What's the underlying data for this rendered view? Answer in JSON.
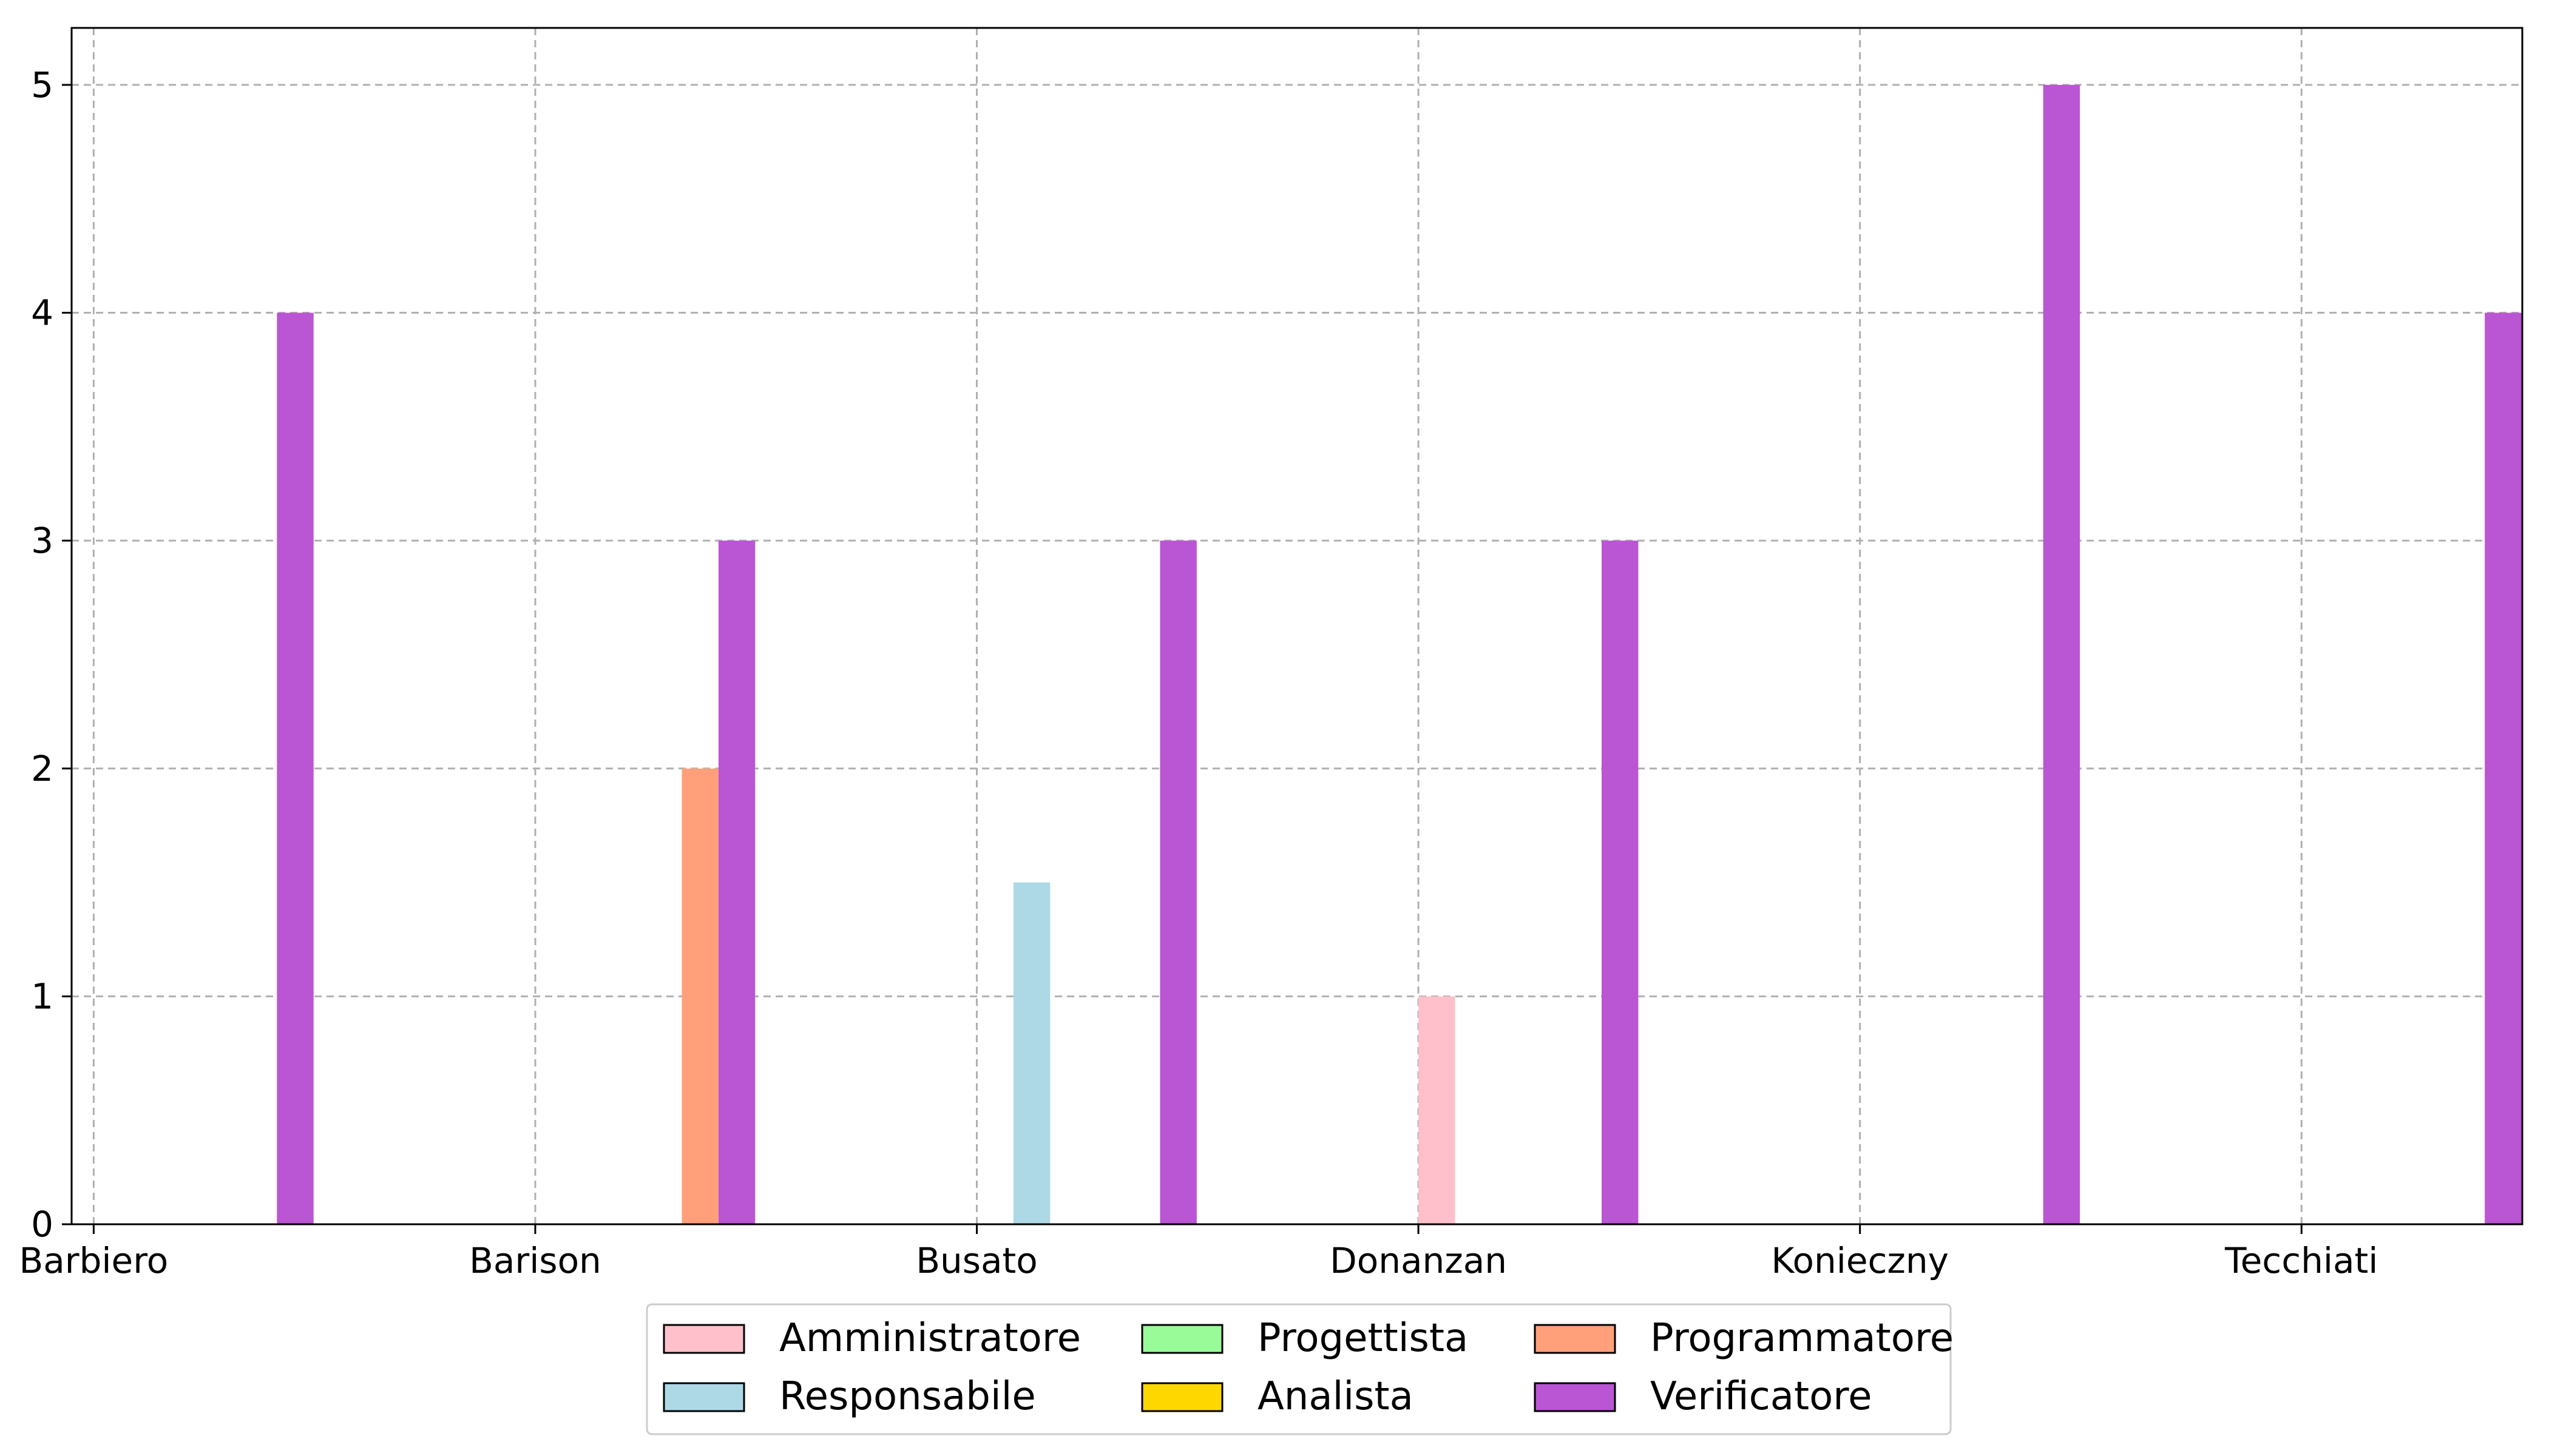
{
  "chart_data": {
    "type": "bar",
    "title": "",
    "xlabel": "",
    "ylabel": "",
    "categories": [
      "Barbiero",
      "Barison",
      "Busato",
      "Donanzan",
      "Konieczny",
      "Tecchiati"
    ],
    "ylim": [
      0,
      5.25
    ],
    "yticks": [
      0,
      1,
      2,
      3,
      4,
      5
    ],
    "grid": true,
    "legend_position": "bottom-center",
    "series": [
      {
        "name": "Amministratore",
        "color": "#ffc0cb",
        "values": [
          0,
          0,
          0,
          1,
          0,
          0
        ]
      },
      {
        "name": "Responsabile",
        "color": "#add8e6",
        "values": [
          0,
          0,
          1.5,
          0,
          0,
          0
        ]
      },
      {
        "name": "Progettista",
        "color": "#98fb98",
        "values": [
          0,
          0,
          0,
          0,
          0,
          0
        ]
      },
      {
        "name": "Analista",
        "color": "#ffd700",
        "values": [
          0,
          0,
          0,
          0,
          0,
          0
        ]
      },
      {
        "name": "Programmatore",
        "color": "#ffa07a",
        "values": [
          0,
          2,
          0,
          0,
          0,
          0
        ]
      },
      {
        "name": "Verificatore",
        "color": "#ba55d3",
        "values": [
          4,
          3,
          3,
          3,
          5,
          4
        ]
      }
    ]
  }
}
